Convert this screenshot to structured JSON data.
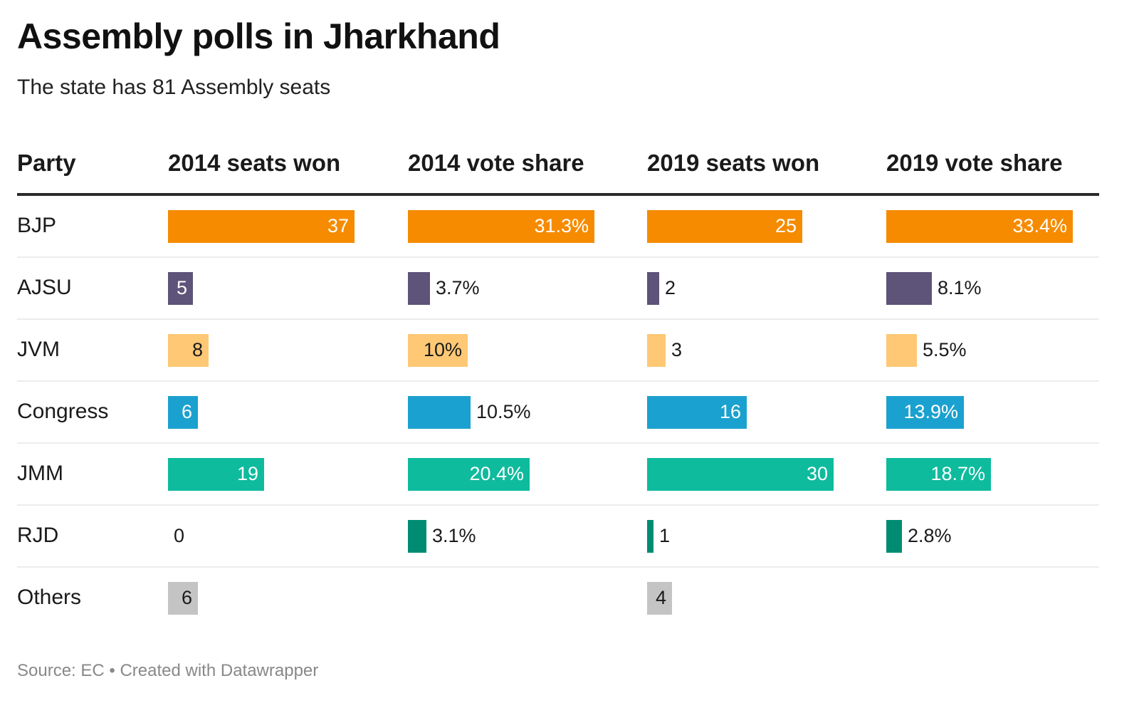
{
  "title": "Assembly polls in Jharkhand",
  "subtitle": "The state has 81 Assembly seats",
  "footer": "Source: EC • Created with Datawrapper",
  "colors": {
    "BJP": "#f68b00",
    "AJSU": "#5e5378",
    "JVM": "#fec874",
    "Congress": "#1ba1cf",
    "JMM": "#0ebb9d",
    "RJD": "#008c73",
    "Others": "#c4c4c4"
  },
  "chart_data": {
    "type": "table",
    "title": "Assembly polls in Jharkhand",
    "subtitle": "The state has 81 Assembly seats",
    "columns": [
      "Party",
      "2014 seats won",
      "2014 vote share",
      "2019 seats won",
      "2019 vote share"
    ],
    "rows": [
      {
        "party": "BJP",
        "seats_2014": 37,
        "vote_2014": 31.3,
        "seats_2019": 25,
        "vote_2019": 33.4
      },
      {
        "party": "AJSU",
        "seats_2014": 5,
        "vote_2014": 3.7,
        "seats_2019": 2,
        "vote_2019": 8.1
      },
      {
        "party": "JVM",
        "seats_2014": 8,
        "vote_2014": 10,
        "seats_2019": 3,
        "vote_2019": 5.5
      },
      {
        "party": "Congress",
        "seats_2014": 6,
        "vote_2014": 10.5,
        "seats_2019": 16,
        "vote_2019": 13.9
      },
      {
        "party": "JMM",
        "seats_2014": 19,
        "vote_2014": 20.4,
        "seats_2019": 30,
        "vote_2019": 18.7
      },
      {
        "party": "RJD",
        "seats_2014": 0,
        "vote_2014": 3.1,
        "seats_2019": 1,
        "vote_2019": 2.8
      },
      {
        "party": "Others",
        "seats_2014": 6,
        "vote_2014": null,
        "seats_2019": 4,
        "vote_2019": null
      }
    ],
    "labels": [
      {
        "seats_2014": "37",
        "vote_2014": "31.3%",
        "seats_2019": "25",
        "vote_2019": "33.4%"
      },
      {
        "seats_2014": "5",
        "vote_2014": "3.7%",
        "seats_2019": "2",
        "vote_2019": "8.1%"
      },
      {
        "seats_2014": "8",
        "vote_2014": "10%",
        "seats_2019": "3",
        "vote_2019": "5.5%"
      },
      {
        "seats_2014": "6",
        "vote_2014": "10.5%",
        "seats_2019": "16",
        "vote_2019": "13.9%"
      },
      {
        "seats_2014": "19",
        "vote_2014": "20.4%",
        "seats_2019": "30",
        "vote_2019": "18.7%"
      },
      {
        "seats_2014": "0",
        "vote_2014": "3.1%",
        "seats_2019": "1",
        "vote_2019": "2.8%"
      },
      {
        "seats_2014": "6",
        "vote_2014": "",
        "seats_2019": "4",
        "vote_2019": ""
      }
    ],
    "source": "Source: EC",
    "credit": "Created with Datawrapper"
  }
}
